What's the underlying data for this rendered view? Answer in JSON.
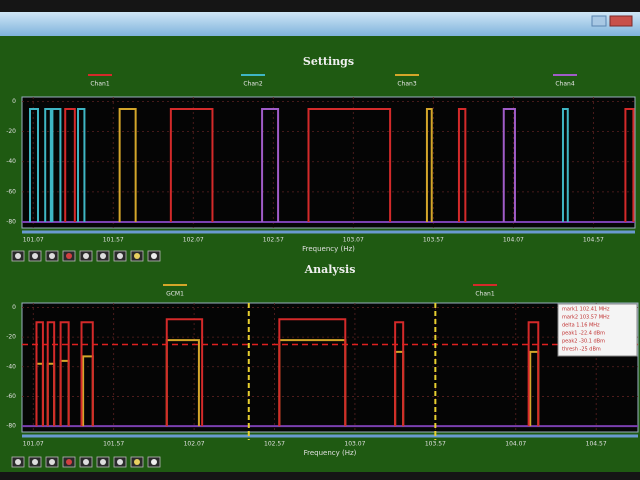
{
  "chart_data": [
    {
      "type": "pulse",
      "title": "Settings",
      "xlabel": "Frequency (Hz)",
      "xlim": [
        101.0,
        104.83
      ],
      "xticks": [
        101.07,
        101.57,
        102.07,
        102.57,
        103.07,
        103.57,
        104.07,
        104.57
      ],
      "ylim": [
        -84,
        3
      ],
      "yticks": [
        0,
        -20,
        -40,
        -60,
        -80
      ],
      "baseline": -80,
      "grid": true,
      "series": [
        {
          "name": "Chan1",
          "color": "#d42a2a",
          "pulses": [
            [
              101.27,
              101.33,
              -5
            ],
            [
              101.93,
              102.19,
              -5
            ],
            [
              102.79,
              103.3,
              -5
            ],
            [
              103.73,
              103.77,
              -5
            ],
            [
              104.77,
              104.82,
              -5
            ]
          ]
        },
        {
          "name": "Chan2",
          "color": "#3fb6c4",
          "pulses": [
            [
              101.05,
              101.1,
              -5
            ],
            [
              101.145,
              101.18,
              -5
            ],
            [
              101.19,
              101.24,
              -5
            ],
            [
              101.35,
              101.39,
              -5
            ],
            [
              104.38,
              104.41,
              -5
            ]
          ]
        },
        {
          "name": "Chan3",
          "color": "#d4a62a",
          "pulses": [
            [
              101.61,
              101.71,
              -5
            ],
            [
              103.53,
              103.56,
              -5
            ]
          ]
        },
        {
          "name": "Chan4",
          "color": "#a05cc8",
          "pulses": [
            [
              102.5,
              102.6,
              -5
            ],
            [
              104.01,
              104.08,
              -5
            ]
          ]
        }
      ]
    },
    {
      "type": "pulse",
      "title": "Analysis",
      "xlabel": "Frequency (Hz)",
      "xlim": [
        101.0,
        104.83
      ],
      "xticks": [
        101.07,
        101.57,
        102.07,
        102.57,
        103.07,
        103.57,
        104.07,
        104.57
      ],
      "ylim": [
        -84,
        3
      ],
      "yticks": [
        0,
        -20,
        -40,
        -60,
        -80
      ],
      "baseline": -80,
      "grid": true,
      "threshold": -25,
      "threshold_color": "#e02020",
      "markers": [
        102.41,
        103.57
      ],
      "marker_color": "#e8d030",
      "series": [
        {
          "name": "GCM1",
          "color": "#d4a62a",
          "pulses": [
            [
              101.09,
              101.13,
              -38
            ],
            [
              101.16,
              101.2,
              -38
            ],
            [
              101.24,
              101.29,
              -36
            ],
            [
              101.38,
              101.44,
              -33
            ],
            [
              101.9,
              102.1,
              -22
            ],
            [
              102.6,
              103.01,
              -22
            ],
            [
              103.32,
              103.37,
              -30
            ],
            [
              104.16,
              104.21,
              -30
            ]
          ]
        },
        {
          "name": "Chan1",
          "color": "#d42a2a",
          "pulses": [
            [
              101.09,
              101.13,
              -10
            ],
            [
              101.16,
              101.2,
              -10
            ],
            [
              101.24,
              101.29,
              -10
            ],
            [
              101.37,
              101.44,
              -10
            ],
            [
              101.9,
              102.12,
              -8
            ],
            [
              102.6,
              103.01,
              -8
            ],
            [
              103.32,
              103.37,
              -10
            ],
            [
              104.15,
              104.21,
              -10
            ]
          ]
        }
      ],
      "table": [
        "mark1  102.41 MHz",
        "mark2  103.57 MHz",
        "delta  1.16 MHz",
        "peak1  -22.4 dBm",
        "peak2  -30.1 dBm",
        "thresh -25 dBm"
      ]
    }
  ]
}
